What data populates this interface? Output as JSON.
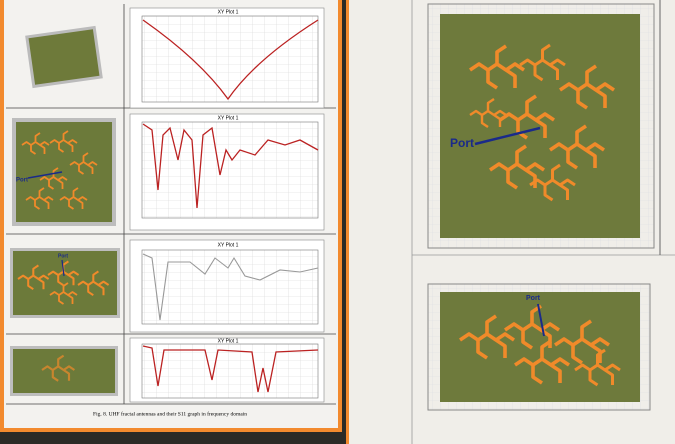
{
  "left_page": {
    "plots": [
      {
        "title": "XY Plot 1"
      },
      {
        "title": "XY Plot 1"
      },
      {
        "title": "XY Plot 1"
      },
      {
        "title": "XY Plot 1"
      }
    ],
    "antennas": [
      {
        "label": "Port"
      },
      {
        "label": "Port"
      }
    ],
    "caption": "Fig. 8. UHF fractal antennas and their S11 graph in frequency domain"
  },
  "right_page": {
    "top": {
      "label": "Port"
    },
    "bottom": {
      "label": "Port"
    }
  }
}
